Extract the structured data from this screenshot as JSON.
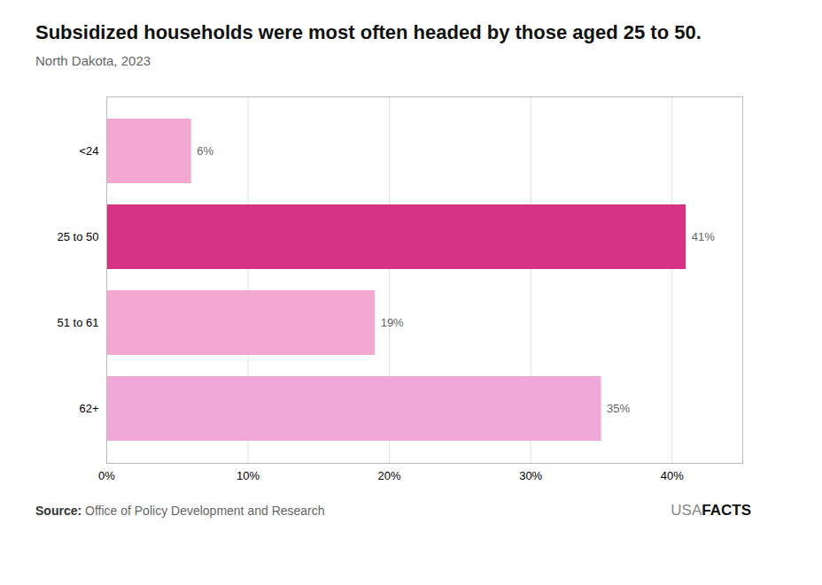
{
  "chart_data": {
    "type": "bar",
    "orientation": "horizontal",
    "title": "Subsidized households were most often headed by those aged 25 to 50.",
    "subtitle": "North Dakota, 2023",
    "categories": [
      "<24",
      "25 to 50",
      "51 to 61",
      "62+"
    ],
    "values": [
      6,
      41,
      19,
      35
    ],
    "value_labels": [
      "6%",
      "41%",
      "19%",
      "35%"
    ],
    "data_labels": true,
    "colors": [
      "#f2a8d0",
      "#d63384",
      "#f2a8d0",
      "#f0a8d8"
    ],
    "xlim": [
      0,
      45
    ],
    "xticks": [
      {
        "value": 0,
        "label": "0%"
      },
      {
        "value": 10,
        "label": "10%"
      },
      {
        "value": 20,
        "label": "20%"
      },
      {
        "value": 30,
        "label": "30%"
      },
      {
        "value": 40,
        "label": "40%"
      }
    ],
    "grid": true,
    "source_label": "Source:",
    "source": "Office of Policy Development and Research",
    "logo": [
      "USA",
      "FACTS"
    ]
  }
}
